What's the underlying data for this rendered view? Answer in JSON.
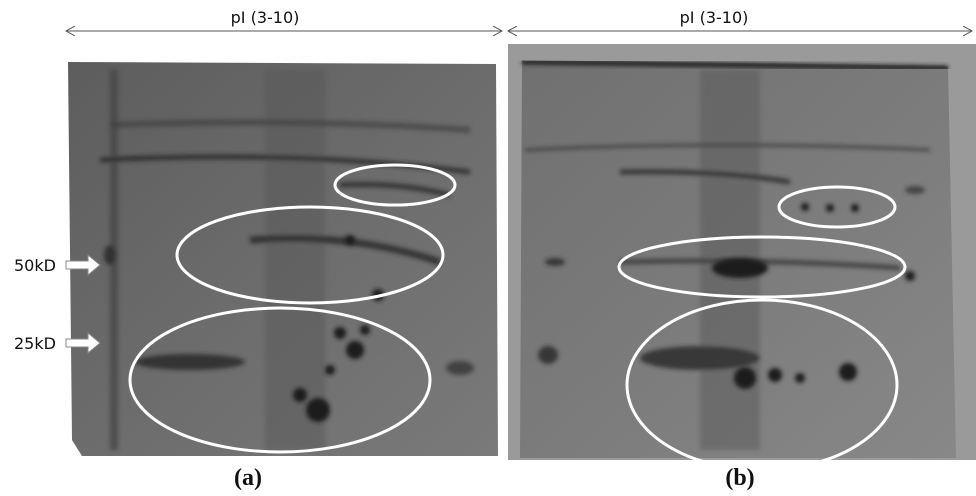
{
  "panels": [
    {
      "axis_label": "pI (3-10)",
      "caption": "(a)"
    },
    {
      "axis_label": "pI (3-10)",
      "caption": "(b)"
    }
  ],
  "markers": [
    {
      "label": "50kD"
    },
    {
      "label": "25kD"
    }
  ]
}
